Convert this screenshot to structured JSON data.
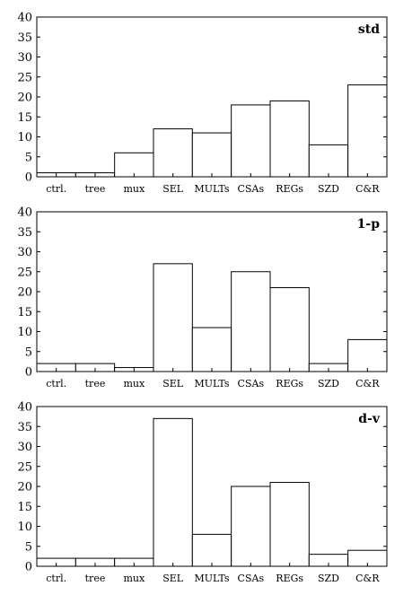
{
  "chart_data": [
    {
      "type": "bar",
      "title": "std",
      "categories": [
        "ctrl.",
        "tree",
        "mux",
        "SEL",
        "MULTs",
        "CSAs",
        "REGs",
        "SZD",
        "C&R"
      ],
      "values": [
        1,
        1,
        6,
        12,
        11,
        18,
        19,
        8,
        23
      ],
      "ylim": [
        0,
        40
      ],
      "yticks": [
        "0",
        "5",
        "10",
        "15",
        "20",
        "25",
        "30",
        "35",
        "40"
      ],
      "xlabel": "",
      "ylabel": "",
      "grid": false,
      "bar_fill": "#ffffff",
      "bar_stroke": "#000000"
    },
    {
      "type": "bar",
      "title": "1-p",
      "categories": [
        "ctrl.",
        "tree",
        "mux",
        "SEL",
        "MULTs",
        "CSAs",
        "REGs",
        "SZD",
        "C&R"
      ],
      "values": [
        2,
        2,
        1,
        27,
        11,
        25,
        21,
        2,
        8
      ],
      "ylim": [
        0,
        40
      ],
      "yticks": [
        "0",
        "5",
        "10",
        "15",
        "20",
        "25",
        "30",
        "35",
        "40"
      ],
      "xlabel": "",
      "ylabel": "",
      "grid": false,
      "bar_fill": "#ffffff",
      "bar_stroke": "#000000"
    },
    {
      "type": "bar",
      "title": "d-v",
      "categories": [
        "ctrl.",
        "tree",
        "mux",
        "SEL",
        "MULTs",
        "CSAs",
        "REGs",
        "SZD",
        "C&R"
      ],
      "values": [
        2,
        2,
        2,
        37,
        8,
        20,
        21,
        3,
        4
      ],
      "ylim": [
        0,
        40
      ],
      "yticks": [
        "0",
        "5",
        "10",
        "15",
        "20",
        "25",
        "30",
        "35",
        "40"
      ],
      "xlabel": "",
      "ylabel": "",
      "grid": false,
      "bar_fill": "#ffffff",
      "bar_stroke": "#000000"
    }
  ]
}
